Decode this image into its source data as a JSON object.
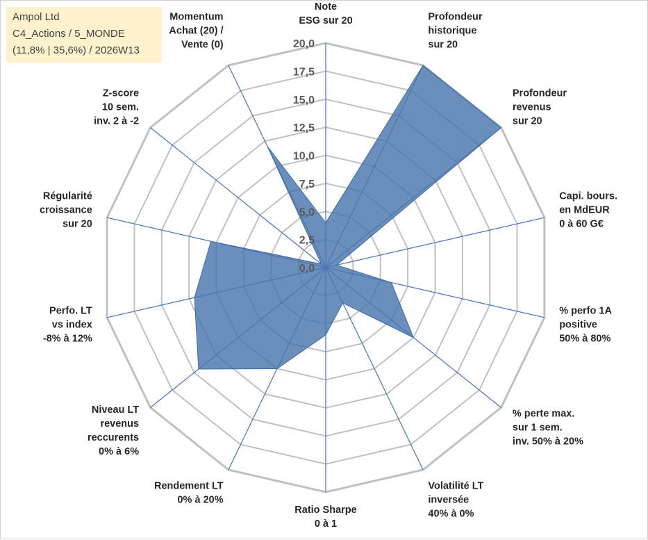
{
  "chart_data": {
    "type": "radar",
    "title_lines": [
      "Ampol Ltd",
      "C4_Actions / 5_MONDE",
      "(11,8% | 35,6%) / 2026W13"
    ],
    "axes": [
      [
        "Note",
        "ESG sur 20"
      ],
      [
        "Profondeur",
        "historique",
        "sur 20"
      ],
      [
        "Profondeur",
        "revenus",
        "sur 20"
      ],
      [
        "Capi. bours.",
        "en MdEUR",
        "0 à 60 G€"
      ],
      [
        "% perfo 1A",
        "positive",
        "50% à 80%"
      ],
      [
        "% perte max.",
        "sur 1 sem.",
        "inv. 50% à 20%"
      ],
      [
        "Volatilité LT",
        "inversée",
        "40% à 0%"
      ],
      [
        "Ratio Sharpe",
        "0 à 1"
      ],
      [
        "Rendement LT",
        "0% à 20%"
      ],
      [
        "Niveau LT",
        "revenus",
        "reccurents",
        "0% à 6%"
      ],
      [
        "Perfo. LT",
        "vs index",
        "-8% à 12%"
      ],
      [
        "Régularité",
        "croissance",
        "sur 20"
      ],
      [
        "Z-score",
        "10 sem.",
        "inv. 2 à -2"
      ],
      [
        "Momentum",
        "Achat (20) /",
        "Vente (0)"
      ]
    ],
    "values": [
      4.0,
      20.0,
      20.0,
      1.0,
      6.0,
      10.0,
      3.5,
      6.0,
      10.0,
      14.5,
      12.0,
      10.5,
      0.5,
      12.0
    ],
    "range": [
      0,
      20
    ],
    "ticks": [
      "0,0",
      "2,5",
      "5,0",
      "7,5",
      "10,0",
      "12,5",
      "15,0",
      "17,5",
      "20,0"
    ],
    "tick_values": [
      0,
      2.5,
      5,
      7.5,
      10,
      12.5,
      15,
      17.5,
      20
    ],
    "series_name": "Ampol Ltd",
    "colors": {
      "fill": "#4a76ad",
      "stroke": "#3b6aa6",
      "grid": "#c0c0c0",
      "spoke": "#4472c4",
      "title_bg": "#fff2cc"
    }
  }
}
